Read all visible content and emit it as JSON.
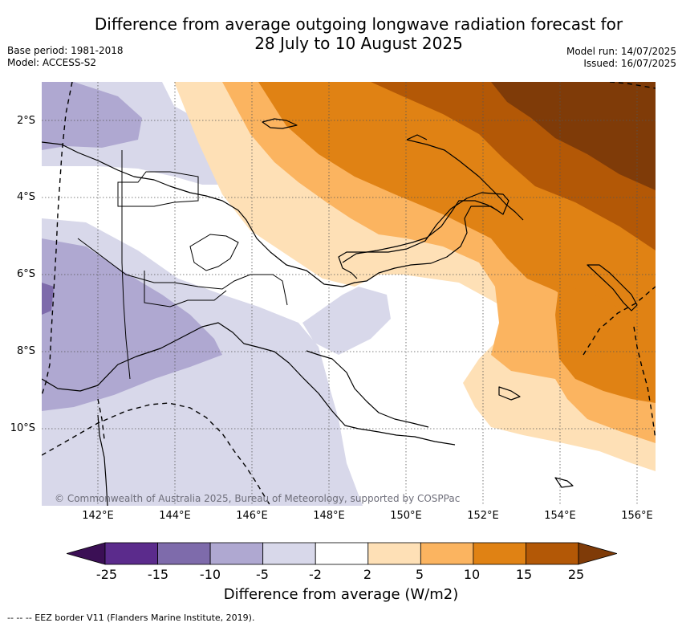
{
  "title_line1": "Difference from average outgoing longwave radiation forecast for",
  "title_line2": "28 July to 10 August 2025",
  "base_period": "Base period: 1981-2018",
  "model": "Model: ACCESS-S2",
  "model_run": "Model run: 14/07/2025",
  "issued": "Issued: 16/07/2025",
  "copyright": "© Commonwealth of Australia 2025, Bureau of Meteorology, supported by COSPPac",
  "lat_ticks": [
    "2°S",
    "4°S",
    "6°S",
    "8°S",
    "10°S"
  ],
  "lon_ticks": [
    "142°E",
    "144°E",
    "146°E",
    "148°E",
    "150°E",
    "152°E",
    "154°E",
    "156°E"
  ],
  "colorbar": {
    "labels": [
      "-25",
      "-15",
      "-10",
      "-5",
      "-2",
      "2",
      "5",
      "10",
      "15",
      "25"
    ],
    "colors": [
      "#3b0f55",
      "#5b2b8c",
      "#7e6bab",
      "#afa8d1",
      "#d8d8ea",
      "#ffffff",
      "#fee0b6",
      "#fbb460",
      "#e08214",
      "#b35806",
      "#7f3b08"
    ],
    "title": "Difference from average (W/m2)"
  },
  "legend_note": "-- -- -- EEZ border V11 (Flanders Marine Institute, 2019).",
  "map_view": {
    "lon_range": [
      140.6,
      156.5
    ],
    "lat_range": [
      -12.0,
      -1.0
    ],
    "gridlines": true
  }
}
